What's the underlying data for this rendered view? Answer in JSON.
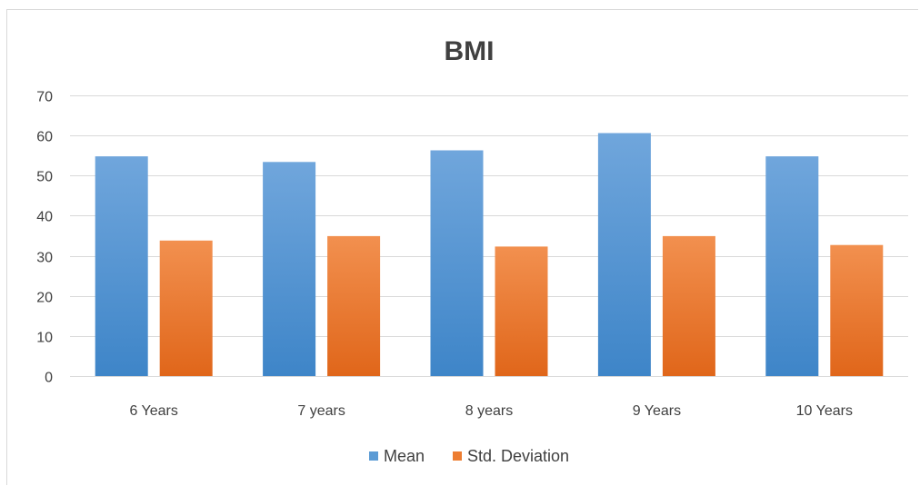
{
  "chart_data": {
    "type": "bar",
    "title": "BMI",
    "xlabel": "",
    "ylabel": "",
    "ylim": [
      0,
      70
    ],
    "yticks": [
      0,
      10,
      20,
      30,
      40,
      50,
      60,
      70
    ],
    "grid": true,
    "legend_position": "bottom",
    "categories": [
      "6 Years",
      "7 years",
      "8 years",
      "9 Years",
      "10 Years"
    ],
    "series": [
      {
        "name": "Mean",
        "values": [
          54.8,
          53.4,
          56.3,
          60.6,
          54.8
        ],
        "color": "#5b9bd5"
      },
      {
        "name": "Std. Deviation",
        "values": [
          33.8,
          34.9,
          32.3,
          34.9,
          32.7
        ],
        "color": "#ed7d31"
      }
    ]
  }
}
